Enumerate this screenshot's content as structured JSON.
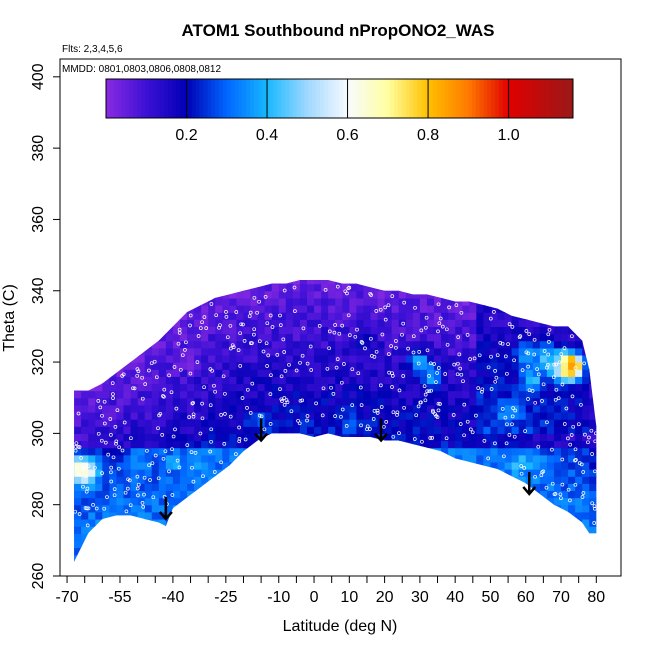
{
  "chart_data": {
    "type": "heatmap",
    "title": "ATOM1 Southbound nPropONO2_WAS",
    "flights_label": "Flts: 2,3,4,5,6",
    "dates_label": "MMDD: 0801,0803,0806,0808,0812",
    "xlabel": "Latitude (deg N)",
    "ylabel": "Theta (C)",
    "xlim": [
      -72,
      87
    ],
    "ylim": [
      260,
      405
    ],
    "x_ticks": [
      -70,
      -55,
      -40,
      -25,
      -10,
      0,
      10,
      20,
      30,
      40,
      50,
      60,
      70,
      80
    ],
    "x_minor_ticks": [
      -65,
      -60,
      -50,
      -45,
      -35,
      -30,
      -20,
      -15,
      -5,
      5,
      15,
      25,
      35,
      45,
      55,
      65,
      75
    ],
    "y_ticks": [
      260,
      280,
      300,
      320,
      340,
      360,
      380,
      400
    ],
    "colorbar": {
      "range": [
        0,
        1.16
      ],
      "ticks": [
        0.2,
        0.4,
        0.6,
        0.8,
        1.0
      ],
      "tick_labels": [
        "0.2",
        "0.4",
        "0.6",
        "0.8",
        "1.0"
      ],
      "stops": [
        {
          "v": 0.0,
          "c": "#8a2be2"
        },
        {
          "v": 0.1,
          "c": "#3d10d6"
        },
        {
          "v": 0.2,
          "c": "#0000b5"
        },
        {
          "v": 0.3,
          "c": "#0066ff"
        },
        {
          "v": 0.4,
          "c": "#17b8ff"
        },
        {
          "v": 0.5,
          "c": "#9fd8ff"
        },
        {
          "v": 0.6,
          "c": "#f7fbff"
        },
        {
          "v": 0.7,
          "c": "#ffffa0"
        },
        {
          "v": 0.8,
          "c": "#ffc000"
        },
        {
          "v": 0.9,
          "c": "#ff7a00"
        },
        {
          "v": 1.0,
          "c": "#e00000"
        },
        {
          "v": 1.16,
          "c": "#9b1818"
        }
      ]
    },
    "upper_boundary": [
      [
        -68,
        312
      ],
      [
        -64,
        312
      ],
      [
        -60,
        314
      ],
      [
        -56,
        317
      ],
      [
        -52,
        320
      ],
      [
        -48,
        323
      ],
      [
        -44,
        326
      ],
      [
        -40,
        330
      ],
      [
        -36,
        334
      ],
      [
        -32,
        336
      ],
      [
        -28,
        338
      ],
      [
        -24,
        339
      ],
      [
        -20,
        340
      ],
      [
        -16,
        341
      ],
      [
        -12,
        342
      ],
      [
        -8,
        342
      ],
      [
        -4,
        343
      ],
      [
        0,
        343
      ],
      [
        4,
        343
      ],
      [
        8,
        342
      ],
      [
        12,
        342
      ],
      [
        16,
        341
      ],
      [
        20,
        340
      ],
      [
        24,
        340
      ],
      [
        28,
        339
      ],
      [
        32,
        339
      ],
      [
        36,
        338
      ],
      [
        40,
        337
      ],
      [
        44,
        337
      ],
      [
        48,
        336
      ],
      [
        52,
        335
      ],
      [
        56,
        333
      ],
      [
        60,
        332
      ],
      [
        64,
        331
      ],
      [
        68,
        330
      ],
      [
        72,
        330
      ],
      [
        76,
        326
      ],
      [
        78,
        318
      ],
      [
        80,
        302
      ]
    ],
    "lower_boundary": [
      [
        -68,
        264
      ],
      [
        -64,
        272
      ],
      [
        -60,
        276
      ],
      [
        -56,
        277
      ],
      [
        -52,
        277
      ],
      [
        -48,
        276
      ],
      [
        -44,
        275
      ],
      [
        -42,
        274
      ],
      [
        -40,
        279
      ],
      [
        -36,
        282
      ],
      [
        -32,
        285
      ],
      [
        -28,
        288
      ],
      [
        -24,
        291
      ],
      [
        -20,
        295
      ],
      [
        -16,
        298
      ],
      [
        -12,
        300
      ],
      [
        -8,
        300
      ],
      [
        -4,
        300
      ],
      [
        0,
        299
      ],
      [
        4,
        300
      ],
      [
        8,
        299
      ],
      [
        12,
        299
      ],
      [
        16,
        299
      ],
      [
        20,
        298
      ],
      [
        24,
        298
      ],
      [
        28,
        297
      ],
      [
        32,
        296
      ],
      [
        36,
        295
      ],
      [
        40,
        293
      ],
      [
        44,
        292
      ],
      [
        48,
        291
      ],
      [
        52,
        290
      ],
      [
        56,
        288
      ],
      [
        60,
        286
      ],
      [
        64,
        283
      ],
      [
        68,
        280
      ],
      [
        72,
        278
      ],
      [
        76,
        275
      ],
      [
        78,
        272
      ],
      [
        80,
        272
      ]
    ],
    "arrows": [
      {
        "lat": -42,
        "theta": 276
      },
      {
        "lat": -15,
        "theta": 298
      },
      {
        "lat": 19,
        "theta": 298
      },
      {
        "lat": 61,
        "theta": 283
      }
    ],
    "hotspots": [
      {
        "lat": -66,
        "theta": 290,
        "value": 0.72
      },
      {
        "lat": -65,
        "theta": 289,
        "value": 0.62
      },
      {
        "lat": 71,
        "theta": 319,
        "value": 1.05
      },
      {
        "lat": 73,
        "theta": 319,
        "value": 0.9
      },
      {
        "lat": 65,
        "theta": 322,
        "value": 0.42
      },
      {
        "lat": 68,
        "theta": 320,
        "value": 0.45
      },
      {
        "lat": 62,
        "theta": 315,
        "value": 0.4
      },
      {
        "lat": 60,
        "theta": 322,
        "value": 0.38
      },
      {
        "lat": 30,
        "theta": 320,
        "value": 0.38
      },
      {
        "lat": 33,
        "theta": 316,
        "value": 0.36
      },
      {
        "lat": 58,
        "theta": 292,
        "value": 0.4
      },
      {
        "lat": 62,
        "theta": 292,
        "value": 0.38
      },
      {
        "lat": 55,
        "theta": 306,
        "value": 0.36
      },
      {
        "lat": -50,
        "theta": 292,
        "value": 0.37
      },
      {
        "lat": -40,
        "theta": 292,
        "value": 0.36
      },
      {
        "lat": -32,
        "theta": 293,
        "value": 0.36
      },
      {
        "lat": -55,
        "theta": 282,
        "value": 0.3
      },
      {
        "lat": -15,
        "theta": 303,
        "value": 0.28
      },
      {
        "lat": 10,
        "theta": 303,
        "value": 0.3
      },
      {
        "lat": -5,
        "theta": 330,
        "value": 0.08
      },
      {
        "lat": -35,
        "theta": 320,
        "value": 0.06
      },
      {
        "lat": 15,
        "theta": 325,
        "value": 0.2
      }
    ]
  }
}
